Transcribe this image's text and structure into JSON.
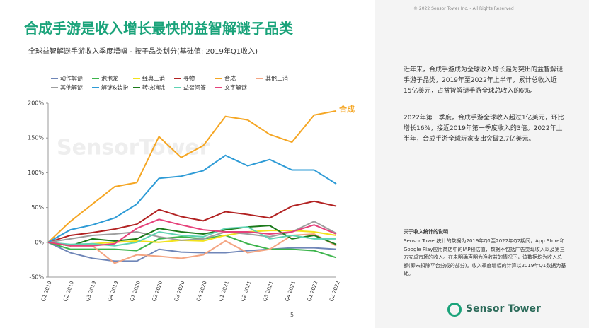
{
  "header": {
    "title": "合成手游是收入增长最快的益智解谜子品类",
    "copyright": "© 2022 Sensor Tower Inc. - All Rights Reserved"
  },
  "chart_data": {
    "type": "line",
    "title": "全球益智解谜手游收入季度增幅 - 按子品类划分(基础值: 2019年Q1收入)",
    "annotation": "合成",
    "watermark": "SensorTower",
    "categories": [
      "Q1 2019",
      "Q2 2019",
      "Q3 2019",
      "Q4 2019",
      "Q1 2020",
      "Q2 2020",
      "Q3 2020",
      "Q4 2020",
      "Q1 2021",
      "Q2 2021",
      "Q3 2021",
      "Q4 2021",
      "Q1 2022",
      "Q2 2022"
    ],
    "ylim": [
      -50,
      200
    ],
    "yticks": [
      {
        "value": -50,
        "label": "-50%"
      },
      {
        "value": 0,
        "label": "0%"
      },
      {
        "value": 50,
        "label": "50%"
      },
      {
        "value": 100,
        "label": "100%"
      },
      {
        "value": 150,
        "label": "150%"
      },
      {
        "value": 200,
        "label": "200%"
      }
    ],
    "series": [
      {
        "name": "动作解谜",
        "color": "#6f86b8",
        "values": [
          0,
          -15,
          -23,
          -27,
          -27,
          -10,
          -14,
          -15,
          -15,
          -12,
          -10,
          -8,
          -8,
          -10
        ]
      },
      {
        "name": "泡泡龙",
        "color": "#3cb44b",
        "values": [
          0,
          -10,
          -10,
          -10,
          -12,
          5,
          8,
          5,
          10,
          -2,
          -10,
          -10,
          -12,
          -22
        ]
      },
      {
        "name": "经典三消",
        "color": "#f2e21b",
        "values": [
          0,
          -5,
          -2,
          0,
          2,
          0,
          3,
          2,
          10,
          15,
          17,
          17,
          15,
          10
        ]
      },
      {
        "name": "寻物",
        "color": "#b22222",
        "values": [
          0,
          10,
          14,
          19,
          26,
          47,
          37,
          31,
          44,
          40,
          35,
          52,
          59,
          52
        ]
      },
      {
        "name": "合成",
        "color": "#f5a623",
        "values": [
          0,
          30,
          55,
          80,
          86,
          152,
          122,
          139,
          181,
          176,
          155,
          144,
          183,
          189
        ]
      },
      {
        "name": "其他三消",
        "color": "#f4a582",
        "values": [
          0,
          -5,
          -5,
          -30,
          -18,
          -20,
          -23,
          -18,
          2,
          -15,
          -10,
          10,
          12,
          -5
        ]
      },
      {
        "name": "其他解谜",
        "color": "#9e9e9e",
        "values": [
          0,
          5,
          10,
          12,
          15,
          8,
          3,
          5,
          15,
          12,
          8,
          15,
          30,
          13
        ]
      },
      {
        "name": "解谜&装扮",
        "color": "#2e9bd6",
        "values": [
          0,
          18,
          25,
          35,
          55,
          92,
          95,
          103,
          125,
          110,
          119,
          104,
          104,
          84
        ]
      },
      {
        "name": "转块消除",
        "color": "#1b7a1b",
        "values": [
          0,
          -5,
          5,
          2,
          5,
          20,
          15,
          12,
          18,
          22,
          24,
          5,
          10,
          -3
        ]
      },
      {
        "name": "益智问答",
        "color": "#5fd3b3",
        "values": [
          0,
          -3,
          -2,
          -5,
          0,
          15,
          10,
          8,
          20,
          22,
          5,
          10,
          5,
          5
        ]
      },
      {
        "name": "文字解谜",
        "color": "#e6417a",
        "values": [
          0,
          -5,
          -5,
          -2,
          20,
          33,
          25,
          18,
          15,
          15,
          12,
          15,
          25,
          12
        ]
      }
    ]
  },
  "sidebar": {
    "paragraphs": [
      "近年来，合成手游成为全球收入增长最为突出的益智解谜手游子品类，2019年至2022年上半年，累计总收入近15亿美元，占益智解谜手游全球总收入的6%。",
      "2022年第一季度，合成手游全球收入超过1亿美元，环比增长16%，接近2019年第一季度收入的3倍。2022年上半年，合成手游全球玩家支出突破2.7亿美元。"
    ],
    "note_title": "关于收入统计的说明",
    "note_text": "Sensor Tower统计的数据为2019年Q1至2022年Q2期间，App Store和Google Play应用商店中的IAP预估值，数据不包括广告变现收入以及第三方安卓市场的收入。在未明确声明为净收益的情况下，该数据均为收入总额(即未扣除平台分成的部分)。收入季度增幅的计算以2019年Q1数据为基础。"
  },
  "footer": {
    "page": "5",
    "logo": "Sensor Tower"
  }
}
